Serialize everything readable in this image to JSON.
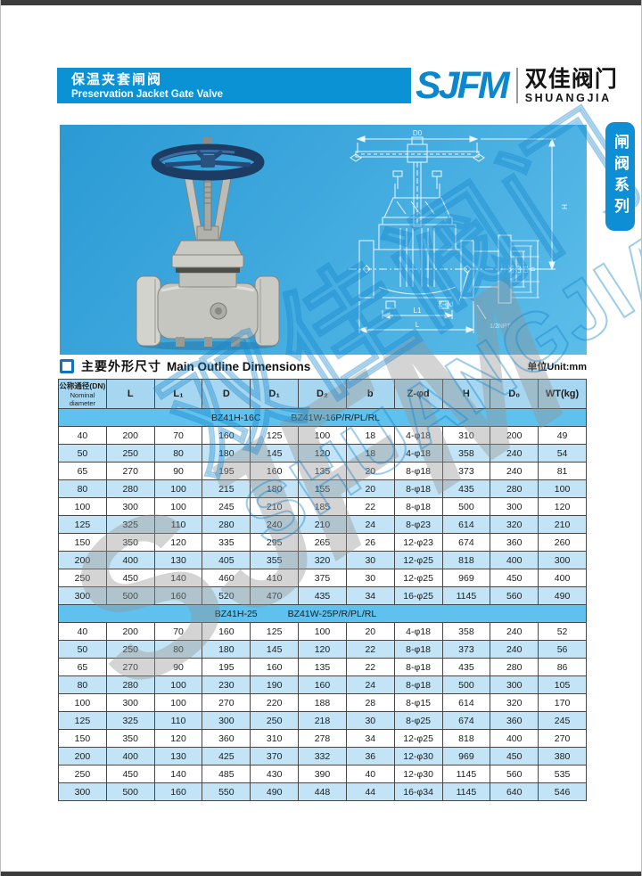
{
  "header": {
    "title_zh": "保温夹套闸阀",
    "title_en": "Preservation Jacket Gate Valve",
    "logo_text": "SJFM",
    "logo_zh": "双佳阀门",
    "logo_en": "SHUANGJIA"
  },
  "series_tab": "闸阀系列",
  "section": {
    "title_zh": "主要外形尺寸",
    "title_en": "Main Outline Dimensions",
    "unit": "单位Unit:mm"
  },
  "drawing_labels": {
    "d0": "D0",
    "h": "H",
    "dn": "DN",
    "d2": "D2",
    "d1": "D1",
    "d": "D",
    "zd": "Z-φd",
    "l1": "L1",
    "l": "L",
    "npt": "1/2NPT"
  },
  "watermark": {
    "sjfm": "SJFM",
    "zh": "双佳阀门",
    "en": "SHUANGJIA"
  },
  "table": {
    "first_col": {
      "zh": "公称通径(DN)",
      "en": "Nominal diameter"
    },
    "columns": [
      "L",
      "L₁",
      "D",
      "D₁",
      "D₂",
      "b",
      "Z-φd",
      "H",
      "D₀",
      "WT(kg)"
    ],
    "sections": [
      {
        "model_left": "BZ41H-16C",
        "model_right": "BZ41W-16P/R/PL/RL",
        "rows": [
          [
            "40",
            "200",
            "70",
            "160",
            "125",
            "100",
            "18",
            "4-φ18",
            "310",
            "200",
            "49"
          ],
          [
            "50",
            "250",
            "80",
            "180",
            "145",
            "120",
            "18",
            "4-φ18",
            "358",
            "240",
            "54"
          ],
          [
            "65",
            "270",
            "90",
            "195",
            "160",
            "135",
            "20",
            "8-φ18",
            "373",
            "240",
            "81"
          ],
          [
            "80",
            "280",
            "100",
            "215",
            "180",
            "155",
            "20",
            "8-φ18",
            "435",
            "280",
            "100"
          ],
          [
            "100",
            "300",
            "100",
            "245",
            "210",
            "185",
            "22",
            "8-φ18",
            "500",
            "300",
            "120"
          ],
          [
            "125",
            "325",
            "110",
            "280",
            "240",
            "210",
            "24",
            "8-φ23",
            "614",
            "320",
            "210"
          ],
          [
            "150",
            "350",
            "120",
            "335",
            "295",
            "265",
            "26",
            "12-φ23",
            "674",
            "360",
            "260"
          ],
          [
            "200",
            "400",
            "130",
            "405",
            "355",
            "320",
            "30",
            "12-φ25",
            "818",
            "400",
            "300"
          ],
          [
            "250",
            "450",
            "140",
            "460",
            "410",
            "375",
            "30",
            "12-φ25",
            "969",
            "450",
            "400"
          ],
          [
            "300",
            "500",
            "160",
            "520",
            "470",
            "435",
            "34",
            "16-φ25",
            "1145",
            "560",
            "490"
          ]
        ]
      },
      {
        "model_left": "BZ41H-25",
        "model_right": "BZ41W-25P/R/PL/RL",
        "rows": [
          [
            "40",
            "200",
            "70",
            "160",
            "125",
            "100",
            "20",
            "4-φ18",
            "358",
            "240",
            "52"
          ],
          [
            "50",
            "250",
            "80",
            "180",
            "145",
            "120",
            "22",
            "8-φ18",
            "373",
            "240",
            "56"
          ],
          [
            "65",
            "270",
            "90",
            "195",
            "160",
            "135",
            "22",
            "8-φ18",
            "435",
            "280",
            "86"
          ],
          [
            "80",
            "280",
            "100",
            "230",
            "190",
            "160",
            "24",
            "8-φ18",
            "500",
            "300",
            "105"
          ],
          [
            "100",
            "300",
            "100",
            "270",
            "220",
            "188",
            "28",
            "8-φ15",
            "614",
            "320",
            "170"
          ],
          [
            "125",
            "325",
            "110",
            "300",
            "250",
            "218",
            "30",
            "8-φ25",
            "674",
            "360",
            "245"
          ],
          [
            "150",
            "350",
            "120",
            "360",
            "310",
            "278",
            "34",
            "12-φ25",
            "818",
            "400",
            "270"
          ],
          [
            "200",
            "400",
            "130",
            "425",
            "370",
            "332",
            "36",
            "12-φ30",
            "969",
            "450",
            "380"
          ],
          [
            "250",
            "450",
            "140",
            "485",
            "430",
            "390",
            "40",
            "12-φ30",
            "1145",
            "560",
            "535"
          ],
          [
            "300",
            "500",
            "160",
            "550",
            "490",
            "448",
            "44",
            "16-φ34",
            "1145",
            "640",
            "546"
          ]
        ]
      }
    ]
  }
}
